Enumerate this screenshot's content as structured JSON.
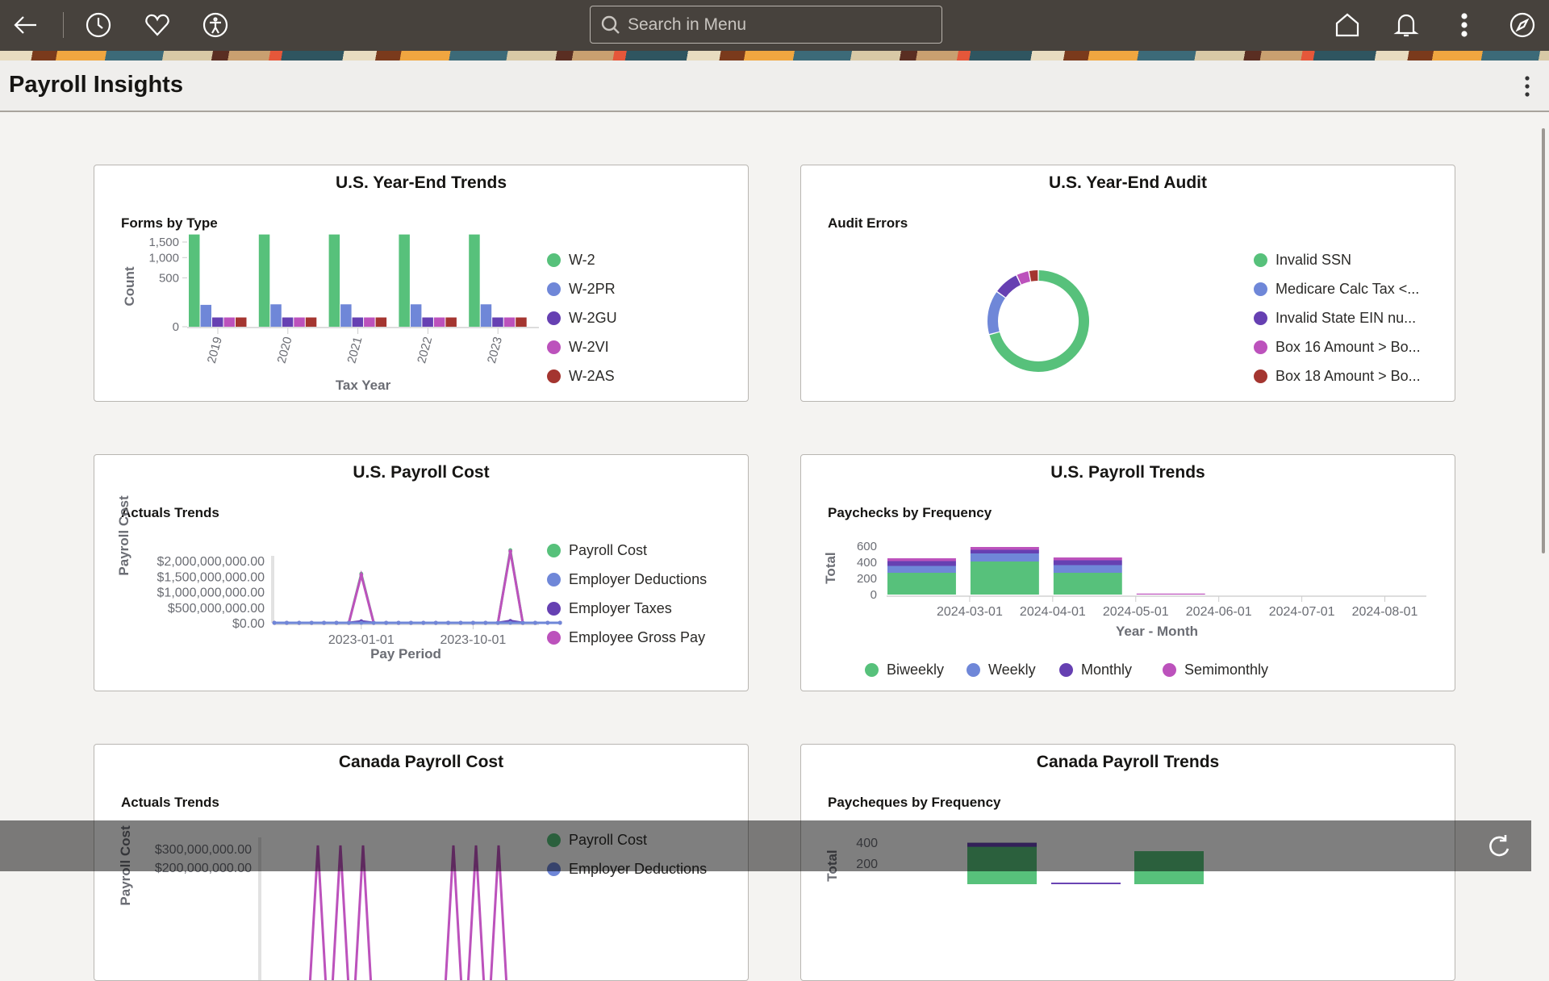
{
  "header": {
    "search_placeholder": "Search in Menu",
    "icons": [
      "back-arrow-icon",
      "clock-icon",
      "heart-icon",
      "accessibility-icon",
      "home-icon",
      "bell-icon",
      "more-vertical-icon",
      "compass-icon"
    ]
  },
  "page": {
    "title": "Payroll Insights"
  },
  "colors": {
    "green": "#57c17b",
    "blue": "#6f87d8",
    "purple": "#6640b2",
    "magenta": "#bc52bc",
    "red": "#a43530"
  },
  "cards": [
    {
      "title": "U.S. Year-End Trends",
      "subtitle": "Forms by Type"
    },
    {
      "title": "U.S. Year-End Audit",
      "subtitle": "Audit Errors"
    },
    {
      "title": "U.S. Payroll Cost",
      "subtitle": "Actuals Trends"
    },
    {
      "title": "U.S. Payroll Trends",
      "subtitle": "Paychecks by Frequency"
    },
    {
      "title": "Canada Payroll Cost",
      "subtitle": "Actuals Trends"
    },
    {
      "title": "Canada Payroll Trends",
      "subtitle": "Paycheques by Frequency"
    }
  ],
  "chart_data": [
    {
      "type": "bar",
      "title": "Forms by Type",
      "xlabel": "Tax Year",
      "ylabel": "Count",
      "scale": "sqrt",
      "yticks": [
        "0",
        "500",
        "1,000",
        "1,500"
      ],
      "ytick_values": [
        0,
        500,
        1000,
        1500
      ],
      "ylim": [
        0,
        1800
      ],
      "categories": [
        "2019",
        "2020",
        "2021",
        "2022",
        "2023"
      ],
      "series": [
        {
          "name": "W-2",
          "values": [
            1780,
            1780,
            1780,
            1780,
            1780
          ]
        },
        {
          "name": "W-2PR",
          "values": [
            100,
            105,
            105,
            105,
            105
          ]
        },
        {
          "name": "W-2GU",
          "values": [
            18,
            18,
            18,
            18,
            18
          ]
        },
        {
          "name": "W-2VI",
          "values": [
            18,
            18,
            18,
            18,
            18
          ]
        },
        {
          "name": "W-2AS",
          "values": [
            18,
            18,
            18,
            18,
            18
          ]
        }
      ],
      "legend": "right"
    },
    {
      "type": "pie",
      "title": "Audit Errors",
      "donut": true,
      "labels": [
        "Invalid SSN",
        "Medicare Calc Tax <...",
        "Invalid State EIN nu...",
        "Box 16 Amount > Bo...",
        "Box 18 Amount > Bo..."
      ],
      "values": [
        70,
        14,
        8,
        4,
        3
      ],
      "legend": "right"
    },
    {
      "type": "line",
      "title": "Actuals Trends",
      "xlabel": "Pay Period",
      "ylabel": "Payroll Cost",
      "yticks": [
        "$0.00",
        "$500,000,000.00",
        "$1,000,000,000.00",
        "$1,500,000,000.00",
        "$2,000,000,000.00"
      ],
      "ytick_values": [
        0,
        500000000,
        1000000000,
        1500000000,
        2000000000
      ],
      "ylim": [
        0,
        2400000000
      ],
      "xticks": [
        "2023-01-01",
        "2023-10-01"
      ],
      "xtick_index": [
        7,
        16
      ],
      "n_points": 24,
      "x_start": "2022-06-01",
      "series": [
        {
          "name": "Payroll Cost",
          "spikes": {
            "7": 1580000000,
            "19": 2340000000
          }
        },
        {
          "name": "Employer Deductions",
          "spikes": {}
        },
        {
          "name": "Employer Taxes",
          "spikes": {
            "7": 50000000,
            "19": 60000000
          }
        },
        {
          "name": "Employee Gross Pay",
          "spikes": {
            "7": 1540000000,
            "19": 2300000000
          }
        }
      ],
      "legend": "right"
    },
    {
      "type": "bar",
      "stacked": true,
      "title": "Paychecks by Frequency",
      "xlabel": "Year - Month",
      "ylabel": "Total",
      "yticks": [
        "0",
        "200",
        "400",
        "600"
      ],
      "ytick_values": [
        0,
        200,
        400,
        600
      ],
      "ylim": [
        0,
        600
      ],
      "xticks": [
        "2024-03-01",
        "2024-04-01",
        "2024-05-01",
        "2024-06-01",
        "2024-07-01",
        "2024-08-01"
      ],
      "categories": [
        "2024-02",
        "2024-03",
        "2024-04",
        "2024-05"
      ],
      "series": [
        {
          "name": "Biweekly",
          "values": [
            270,
            410,
            270,
            0
          ]
        },
        {
          "name": "Weekly",
          "values": [
            85,
            100,
            95,
            0
          ]
        },
        {
          "name": "Monthly",
          "values": [
            60,
            45,
            60,
            0
          ]
        },
        {
          "name": "Semimonthly",
          "values": [
            35,
            35,
            35,
            12
          ]
        }
      ],
      "legend": "bottom"
    },
    {
      "type": "line",
      "title": "Actuals Trends",
      "ylabel": "Payroll Cost",
      "yticks": [
        "$300,000,000.00",
        "$200,000,000.00"
      ],
      "legend_visible": [
        "Payroll Cost",
        "Employer Deductions"
      ]
    },
    {
      "type": "bar",
      "stacked": true,
      "title": "Paycheques by Frequency",
      "ylabel": "Total",
      "yticks": [
        "400",
        "200"
      ],
      "bar_totals": [
        395,
        15,
        315
      ]
    }
  ]
}
